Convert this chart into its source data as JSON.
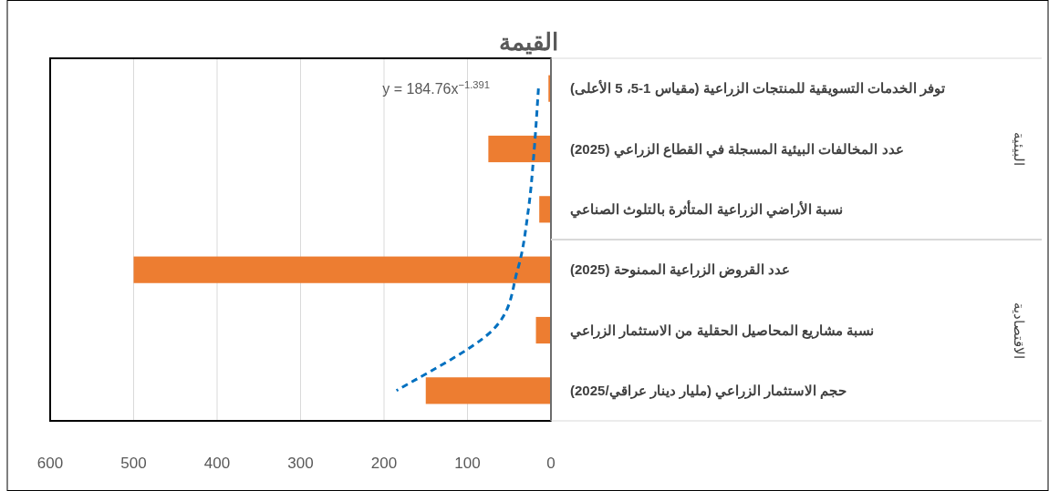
{
  "chart_data": {
    "type": "bar",
    "orientation": "horizontal",
    "title": "القيمة",
    "categories": [
      "توفر الخدمات التسويقية للمنتجات الزراعية (مقياس 1-5، 5 الأعلى)",
      "عدد المخالفات البيئية المسجلة في القطاع الزراعي (2025)",
      "نسبة الأراضي الزراعية المتأثرة بالتلوث الصناعي",
      "عدد القروض الزراعية الممنوحة (2025)",
      "نسبة مشاريع المحاصيل الحقلية من الاستثمار الزراعي",
      "حجم الاستثمار الزراعي (مليار دينار عراقي/2025)"
    ],
    "series": [
      {
        "color": "#ed7d31",
        "values": [
          3,
          75,
          14,
          500,
          18,
          150
        ]
      },
      {
        "type": "line",
        "color": "#0070c0",
        "line_style": "dashed",
        "values": [
          15,
          20,
          27,
          40,
          70,
          185
        ]
      }
    ],
    "xlim": [
      600,
      0
    ],
    "xticks": [
      0,
      100,
      200,
      300,
      400,
      500,
      600
    ],
    "grid": "x",
    "annotations": [
      "y = 184.76x$^{−1.391}$",
      "البيئية",
      "الاقتصادية"
    ]
  }
}
